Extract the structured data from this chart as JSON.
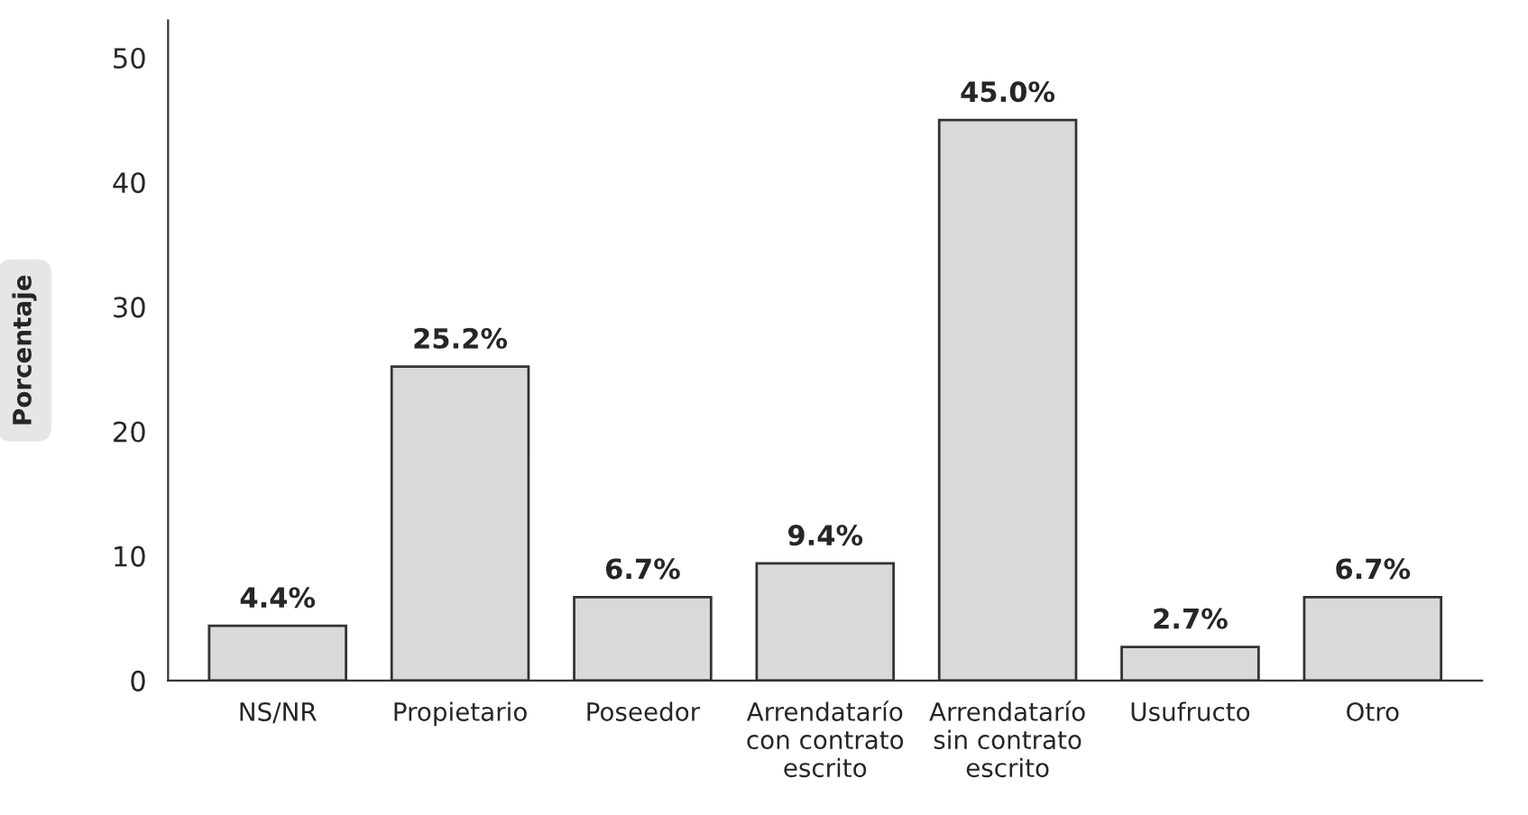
{
  "chart_data": {
    "type": "bar",
    "ylabel": "Porcentaje",
    "categories": [
      "NS/NR",
      "Propietario",
      "Poseedor",
      "Arrendatarío\ncon contrato\nescrito",
      "Arrendatarío\nsin contrato\nescrito",
      "Usufructo",
      "Otro"
    ],
    "values": [
      4.4,
      25.2,
      6.7,
      9.4,
      45.0,
      2.7,
      6.7
    ],
    "value_labels": [
      "4.4%",
      "25.2%",
      "6.7%",
      "9.4%",
      "45.0%",
      "2.7%",
      "6.7%"
    ],
    "color": "#d9d9d9",
    "ylim": [
      0,
      53
    ],
    "yticks": [
      0,
      10,
      20,
      30,
      40,
      50
    ],
    "grid": false,
    "legend": false
  }
}
